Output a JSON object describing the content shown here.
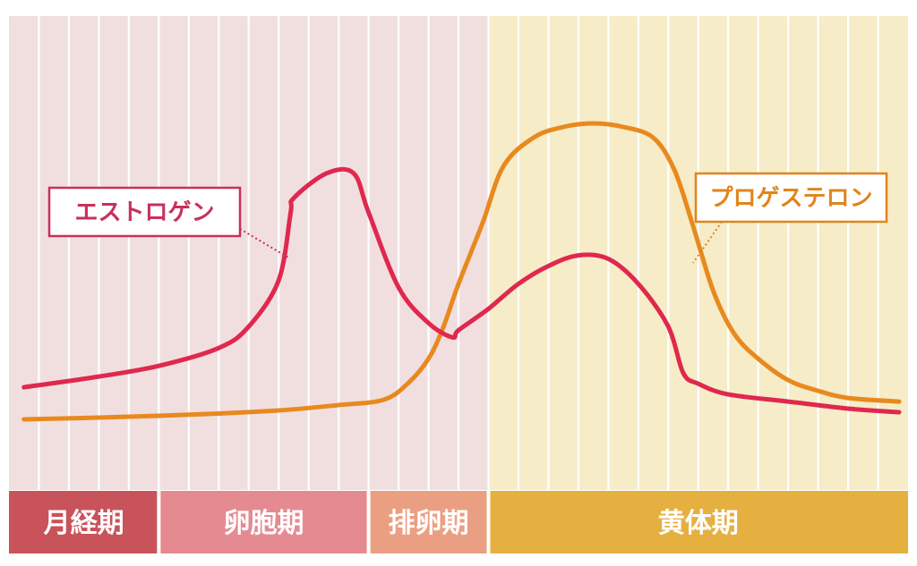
{
  "chart_data": {
    "type": "line",
    "title": "",
    "xlabel": "",
    "ylabel": "",
    "grid": true,
    "phases": [
      {
        "label": "月経期",
        "start": 0,
        "end": 5,
        "bar_color": "#c9535a",
        "bg_color": "#f1dfe0"
      },
      {
        "label": "卵胞期",
        "start": 5,
        "end": 12,
        "bar_color": "#e68a92",
        "bg_color": "#f1dfe0"
      },
      {
        "label": "排卵期",
        "start": 12,
        "end": 16,
        "bar_color": "#eb9f82",
        "bg_color": "#f1dfe0"
      },
      {
        "label": "黄体期",
        "start": 16,
        "end": 30,
        "bar_color": "#e5b040",
        "bg_color": "#f6ecc8"
      }
    ],
    "x_range": [
      0,
      30
    ],
    "y_range": [
      0,
      100
    ],
    "series": [
      {
        "name": "エストロゲン",
        "color": "#e0284e",
        "points": [
          [
            0.5,
            26
          ],
          [
            3,
            29
          ],
          [
            5,
            32
          ],
          [
            7,
            37
          ],
          [
            8,
            43
          ],
          [
            9,
            56
          ],
          [
            9.4,
            75
          ],
          [
            9.5,
            79
          ],
          [
            10.6,
            86
          ],
          [
            11.5,
            86
          ],
          [
            12,
            75
          ],
          [
            13,
            54
          ],
          [
            14,
            44
          ],
          [
            14.8,
            40
          ],
          [
            15,
            42
          ],
          [
            16,
            48
          ],
          [
            17,
            55
          ],
          [
            18,
            60
          ],
          [
            19,
            63
          ],
          [
            20,
            62
          ],
          [
            21,
            55
          ],
          [
            22,
            43
          ],
          [
            22.5,
            30
          ],
          [
            23,
            27
          ],
          [
            24,
            24
          ],
          [
            26,
            22
          ],
          [
            28,
            20
          ],
          [
            29.7,
            19
          ]
        ]
      },
      {
        "name": "プロゲステロン",
        "color": "#e8891f",
        "points": [
          [
            0.5,
            17
          ],
          [
            3,
            17.5
          ],
          [
            6,
            18.3
          ],
          [
            9,
            19.5
          ],
          [
            11,
            21
          ],
          [
            12.5,
            22.5
          ],
          [
            13.3,
            27
          ],
          [
            14,
            34
          ],
          [
            14.5,
            43
          ],
          [
            15,
            55
          ],
          [
            15.8,
            72
          ],
          [
            16.5,
            88
          ],
          [
            17.5,
            96
          ],
          [
            18.5,
            99
          ],
          [
            19.5,
            100
          ],
          [
            20.5,
            99
          ],
          [
            21.5,
            96
          ],
          [
            22.2,
            87
          ],
          [
            22.8,
            72
          ],
          [
            23.5,
            53
          ],
          [
            24.2,
            41
          ],
          [
            25,
            34
          ],
          [
            26,
            28
          ],
          [
            27,
            25
          ],
          [
            28,
            23
          ],
          [
            29.7,
            22
          ]
        ]
      }
    ],
    "annotations": [
      {
        "series": "エストロゲン",
        "text": "エストロゲン",
        "color": "#c8305a"
      },
      {
        "series": "プロゲステロン",
        "text": "プロゲステロン",
        "color": "#e0851a"
      }
    ]
  }
}
